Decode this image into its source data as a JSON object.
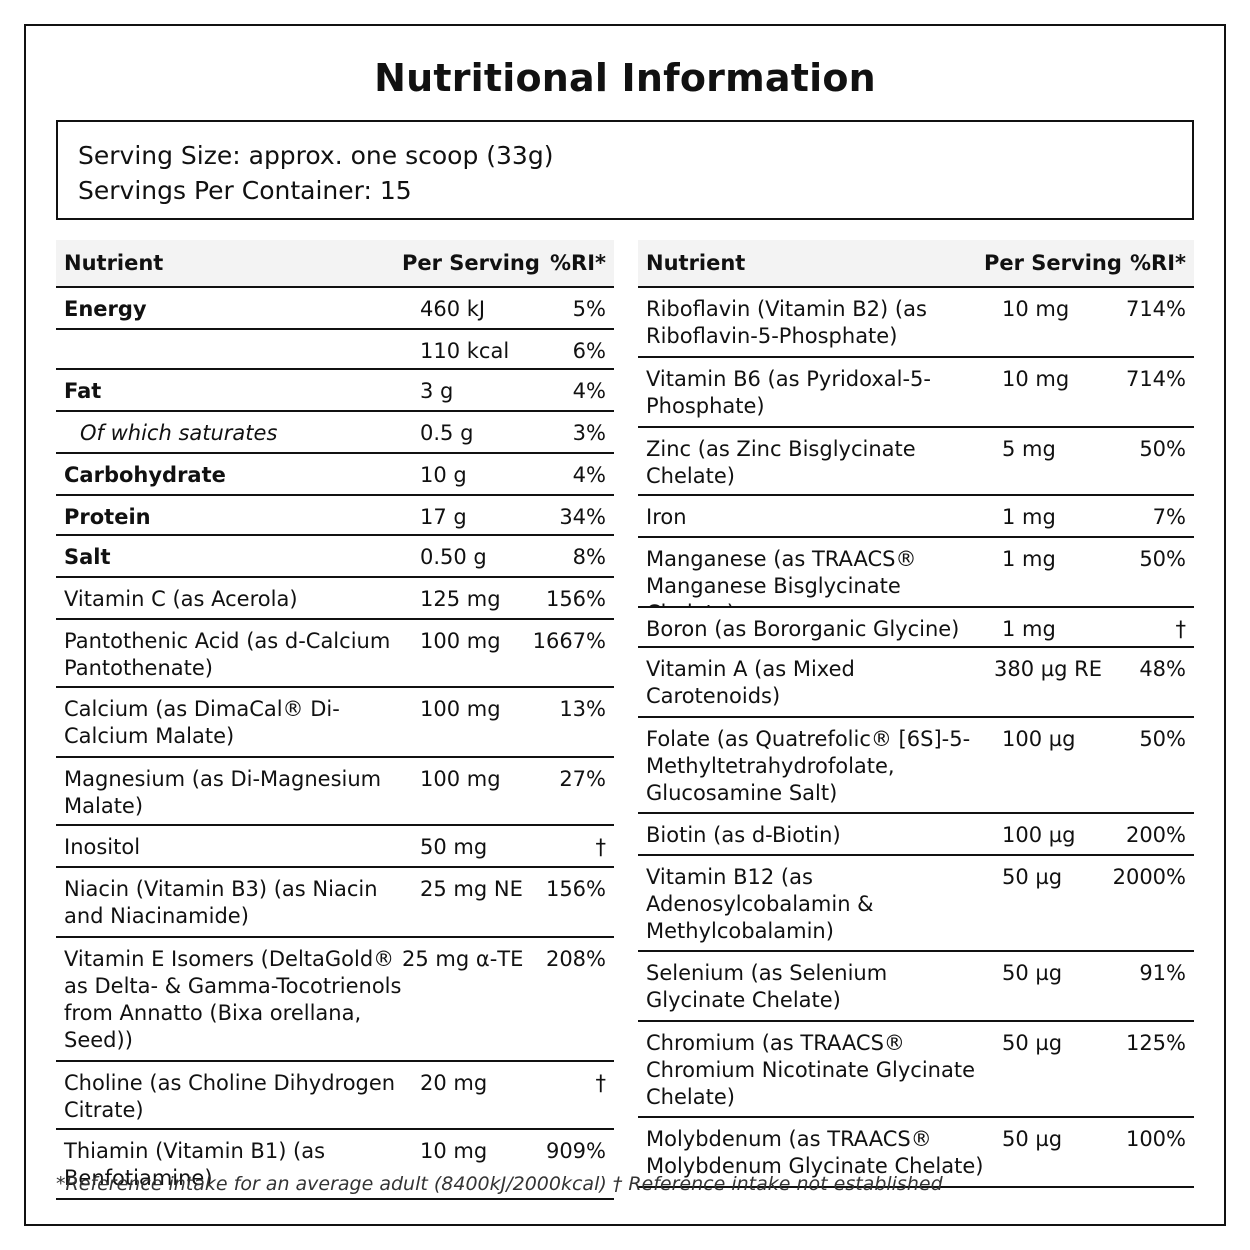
{
  "title": "Nutritional Information",
  "serving": {
    "size": "Serving Size: approx. one scoop (33g)",
    "per_container": "Servings Per Container: 15"
  },
  "table_header": {
    "nutrient": "Nutrient",
    "per_serving": "Per Serving",
    "ri": "%RI*"
  },
  "left_rows": [
    {
      "name": "Energy",
      "per": "460 kJ",
      "ri": "5%"
    },
    {
      "name": "",
      "per": "110 kcal",
      "ri": "6%"
    },
    {
      "name": "Fat",
      "per": "3 g",
      "ri": "4%"
    },
    {
      "name": "Of which saturates",
      "per": "0.5 g",
      "ri": "3%"
    },
    {
      "name": "Carbohydrate",
      "per": "10 g",
      "ri": "4%"
    },
    {
      "name": "Protein",
      "per": "17 g",
      "ri": "34%"
    },
    {
      "name": "Salt",
      "per": "0.50 g",
      "ri": "8%"
    },
    {
      "name": "Vitamin C (as Acerola)",
      "per": "125 mg",
      "ri": "156%"
    },
    {
      "name": "Pantothenic Acid (as d-Calcium Pantothenate)",
      "per": "100 mg",
      "ri": "1667%"
    },
    {
      "name": "Calcium (as DimaCal® Di-Calcium Malate)",
      "per": "100 mg",
      "ri": "13%"
    },
    {
      "name": "Magnesium (as Di-Magnesium Malate)",
      "per": "100 mg",
      "ri": "27%"
    },
    {
      "name": "Inositol",
      "per": "50 mg",
      "ri": "†"
    },
    {
      "name": "Niacin (Vitamin B3) (as Niacin and Niacinamide)",
      "per": "25 mg NE",
      "ri": "156%"
    },
    {
      "name": "Vitamin E Isomers (DeltaGold® as Delta- & Gamma-Tocotrienols from Annatto (Bixa orellana, Seed))",
      "per": "25 mg α-TE",
      "ri": "208%"
    },
    {
      "name": "Choline (as Choline Dihydrogen Citrate)",
      "per": "20 mg",
      "ri": "†"
    },
    {
      "name": "Thiamin (Vitamin B1) (as Benfotiamine)",
      "per": "10 mg",
      "ri": "909%"
    }
  ],
  "right_rows": [
    {
      "name": "Riboflavin (Vitamin B2) (as Riboflavin-5-Phosphate)",
      "per": "10 mg",
      "ri": "714%"
    },
    {
      "name": "Vitamin B6 (as Pyridoxal-5-Phosphate)",
      "per": "10 mg",
      "ri": "714%"
    },
    {
      "name": "Zinc (as Zinc Bisglycinate Chelate)",
      "per": "5 mg",
      "ri": "50%"
    },
    {
      "name": "Iron",
      "per": "1 mg",
      "ri": "7%"
    },
    {
      "name": "Manganese (as TRAACS® Manganese Bisglycinate Chelate)",
      "per": "1 mg",
      "ri": "50%"
    },
    {
      "name": "Boron (as Bororganic Glycine)",
      "per": "1 mg",
      "ri": "†"
    },
    {
      "name": "Vitamin A (as Mixed Carotenoids)",
      "per": "380 µg RE",
      "ri": "48%"
    },
    {
      "name": "Folate (as Quatrefolic® [6S]-5-Methyltetrahydrofolate, Glucosamine Salt)",
      "per": "100 µg",
      "ri": "50%"
    },
    {
      "name": "Biotin (as d-Biotin)",
      "per": "100 µg",
      "ri": "200%"
    },
    {
      "name": "Vitamin B12 (as Adenosylcobalamin & Methylcobalamin)",
      "per": "50 µg",
      "ri": "2000%"
    },
    {
      "name": "Selenium (as Selenium Glycinate Chelate)",
      "per": "50 µg",
      "ri": "91%"
    },
    {
      "name": "Chromium (as TRAACS® Chromium Nicotinate Glycinate Chelate)",
      "per": "50 µg",
      "ri": "125%"
    },
    {
      "name": "Molybdenum (as TRAACS® Molybdenum Glycinate Chelate)",
      "per": "50 µg",
      "ri": "100%"
    }
  ],
  "footnote": "*Reference intake for an average adult (8400kJ/2000kcal) † Reference intake not established"
}
